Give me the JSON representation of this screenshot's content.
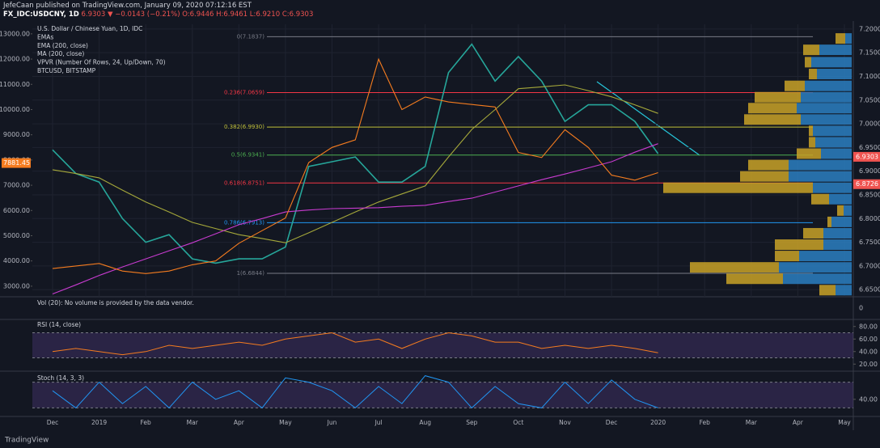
{
  "header": {
    "line1": "JefeCaan published on TradingView.com, January 09, 2020 07:12:16 EST",
    "symbol": "FX_IDC:USDCNY, 1D",
    "price": "6.9303",
    "change": "▼ −0.0143 (−0.21%)",
    "ohlc": "O:6.9446 H:6.9461 L:6.9210 C:6.9303"
  },
  "chart_data": {
    "type": "line",
    "legend": [
      "U.S. Dollar / Chinese Yuan, 1D, IDC",
      "EMAs",
      "EMA (200, close)",
      "MA (200, close)",
      "VPVR (Number Of Rows, 24, Up/Down, 70)",
      "BTCUSD, BITSTAMP"
    ],
    "categories": [
      "Dec",
      null,
      "2019",
      null,
      "Feb",
      null,
      "Mar",
      null,
      "Apr",
      null,
      "May",
      null,
      "Jun",
      null,
      "Jul",
      null,
      "Aug",
      null,
      "Sep",
      null,
      "Oct",
      null,
      "Nov",
      null,
      "Dec",
      null,
      "2020",
      null,
      "Feb",
      null,
      "Mar",
      null,
      "Apr",
      null,
      "May"
    ],
    "ylim": [
      6.635,
      7.21
    ],
    "yticks": [
      {
        "value": 6.65,
        "label": "6.6500"
      },
      {
        "value": 6.7,
        "label": "6.7000"
      },
      {
        "value": 6.75,
        "label": "6.7500"
      },
      {
        "value": 6.8,
        "label": "6.8000"
      },
      {
        "value": 6.85,
        "label": "6.8500"
      },
      {
        "value": 6.9,
        "label": "6.9000"
      },
      {
        "value": 6.95,
        "label": "6.9500"
      },
      {
        "value": 7.0,
        "label": "7.0000"
      },
      {
        "value": 7.05,
        "label": "7.0500"
      },
      {
        "value": 7.1,
        "label": "7.1000"
      },
      {
        "value": 7.15,
        "label": "7.1500"
      },
      {
        "value": 7.2,
        "label": "7.2000"
      }
    ],
    "y2lim": [
      2580,
      13380
    ],
    "y2ticks": [
      {
        "value": 3000,
        "label": "3000.00"
      },
      {
        "value": 4000,
        "label": "4000.00"
      },
      {
        "value": 5000,
        "label": "5000.00"
      },
      {
        "value": 6000,
        "label": "6000.00"
      },
      {
        "value": 7000,
        "label": "7000.00"
      },
      {
        "value": 8000,
        "label": "8000.00"
      },
      {
        "value": 9000,
        "label": "9000.00"
      },
      {
        "value": 10000,
        "label": "10000.00"
      },
      {
        "value": 11000,
        "label": "11000.00"
      },
      {
        "value": 12000,
        "label": "12000.00"
      },
      {
        "value": 13000,
        "label": "13000.00"
      }
    ],
    "grid": true,
    "series": [
      {
        "name": "U.S. Dollar / Chinese Yuan",
        "color": "#26a69a",
        "values": [
          6.945,
          6.895,
          6.877,
          6.8,
          6.75,
          6.766,
          6.715,
          6.706,
          6.715,
          6.715,
          6.74,
          6.91,
          6.92,
          6.93,
          6.877,
          6.877,
          6.91,
          7.108,
          7.168,
          7.09,
          7.142,
          7.09,
          7.005,
          7.04,
          7.04,
          7.005,
          6.937,
          null,
          null,
          null,
          null,
          null,
          null,
          null,
          null
        ]
      },
      {
        "name": "EMA (200, close)",
        "color": "#a5a83a",
        "values": [
          6.903,
          6.895,
          6.886,
          6.86,
          6.835,
          6.814,
          6.792,
          6.779,
          6.766,
          6.758,
          6.749,
          6.77,
          6.792,
          6.814,
          6.835,
          6.852,
          6.869,
          6.93,
          6.988,
          7.03,
          7.074,
          7.078,
          7.082,
          7.07,
          7.057,
          7.04,
          7.022,
          null,
          null,
          null,
          null,
          null,
          null,
          null,
          null
        ]
      },
      {
        "name": "MA (200, close)",
        "color": "#c83bd0",
        "values": [
          6.641,
          6.66,
          6.68,
          6.698,
          6.715,
          6.732,
          6.749,
          6.768,
          6.787,
          6.8,
          6.814,
          6.818,
          6.821,
          6.822,
          6.823,
          6.826,
          6.828,
          6.836,
          6.843,
          6.856,
          6.869,
          6.882,
          6.894,
          6.907,
          6.92,
          6.94,
          6.958,
          null,
          null,
          null,
          null,
          null,
          null,
          null,
          null
        ]
      },
      {
        "name": "BTCUSD, BITSTAMP",
        "color": "#f57c1f",
        "axis": "y2",
        "values": [
          3700,
          3800,
          3900,
          3600,
          3500,
          3600,
          3850,
          4000,
          4700,
          5200,
          5700,
          7900,
          8500,
          8800,
          12000,
          10000,
          10500,
          10300,
          10200,
          10100,
          8300,
          8100,
          9200,
          8500,
          7400,
          7200,
          7500,
          null,
          null,
          null,
          null,
          null,
          null,
          null,
          null
        ]
      }
    ],
    "fib": [
      {
        "label": "0(7.1837)",
        "value": 7.1837,
        "color": "#787b86"
      },
      {
        "label": "0.236(7.0659)",
        "value": 7.0659,
        "color": "#f23645"
      },
      {
        "label": "0.382(6.9930)",
        "value": 6.993,
        "color": "#c0c03a"
      },
      {
        "label": "0.5(6.9341)",
        "value": 6.9341,
        "color": "#4caf50"
      },
      {
        "label": "0.618(6.8751)",
        "value": 6.8751,
        "color": "#f23645"
      },
      {
        "label": "0.786(6.7913)",
        "value": 6.7913,
        "color": "#2196f3"
      },
      {
        "label": "1(6.6844)",
        "value": 6.6844,
        "color": "#787b86"
      }
    ],
    "price_labels": {
      "last": 6.9303,
      "ma": 6.8726,
      "btc": 7881.45
    },
    "volume_profile": {
      "colors": [
        "#2c7fc1",
        "#c9a227"
      ],
      "rows": [
        {
          "price": 7.18,
          "up": 8,
          "down": 12
        },
        {
          "price": 7.156,
          "up": 40,
          "down": 20
        },
        {
          "price": 7.13,
          "up": 50,
          "down": 8
        },
        {
          "price": 7.105,
          "up": 43,
          "down": 10
        },
        {
          "price": 7.08,
          "up": 58,
          "down": 25
        },
        {
          "price": 7.056,
          "up": 63,
          "down": 57
        },
        {
          "price": 7.033,
          "up": 68,
          "down": 60
        },
        {
          "price": 7.009,
          "up": 63,
          "down": 70
        },
        {
          "price": 6.985,
          "up": 48,
          "down": 5
        },
        {
          "price": 6.961,
          "up": 45,
          "down": 8
        },
        {
          "price": 6.937,
          "up": 38,
          "down": 30
        },
        {
          "price": 6.913,
          "up": 78,
          "down": 50
        },
        {
          "price": 6.889,
          "up": 78,
          "down": 60
        },
        {
          "price": 6.865,
          "up": 48,
          "down": 185
        },
        {
          "price": 6.841,
          "up": 28,
          "down": 22
        },
        {
          "price": 6.817,
          "up": 10,
          "down": 8
        },
        {
          "price": 6.793,
          "up": 25,
          "down": 5
        },
        {
          "price": 6.769,
          "up": 35,
          "down": 25
        },
        {
          "price": 6.745,
          "up": 35,
          "down": 60
        },
        {
          "price": 6.721,
          "up": 65,
          "down": 30
        },
        {
          "price": 6.697,
          "up": 90,
          "down": 110
        },
        {
          "price": 6.673,
          "up": 85,
          "down": 70
        },
        {
          "price": 6.649,
          "up": 20,
          "down": 20
        }
      ]
    }
  },
  "volume": {
    "label": "Vol (20): No volume is provided by the data vendor.",
    "yticks": [
      0
    ]
  },
  "rsi": {
    "label": "RSI (14, close)",
    "color": "#f57c1f",
    "ylim": [
      10,
      90
    ],
    "band": [
      30,
      70
    ],
    "yticks": [
      {
        "value": 20,
        "label": "20.00"
      },
      {
        "value": 40,
        "label": "40.00"
      },
      {
        "value": 60,
        "label": "60.00"
      },
      {
        "value": 80,
        "label": "80.00"
      }
    ],
    "values": [
      40,
      45,
      40,
      35,
      40,
      50,
      45,
      50,
      55,
      50,
      60,
      65,
      70,
      55,
      60,
      45,
      60,
      70,
      65,
      55,
      55,
      45,
      50,
      45,
      50,
      45,
      38,
      null,
      null,
      null,
      null,
      null,
      null,
      null,
      null
    ]
  },
  "stoch": {
    "label": "Stoch (14, 3, 3)",
    "color": "#2196f3",
    "ylim": [
      0,
      100
    ],
    "band": [
      20,
      80
    ],
    "yticks": [
      {
        "value": 40,
        "label": "40.00"
      }
    ],
    "values": [
      60,
      20,
      80,
      30,
      70,
      20,
      80,
      40,
      60,
      20,
      90,
      80,
      60,
      20,
      70,
      30,
      95,
      80,
      20,
      70,
      30,
      20,
      80,
      30,
      85,
      40,
      20,
      null,
      null,
      null,
      null,
      null,
      null,
      null,
      null
    ]
  },
  "footer": {
    "brand": "TradingView"
  }
}
